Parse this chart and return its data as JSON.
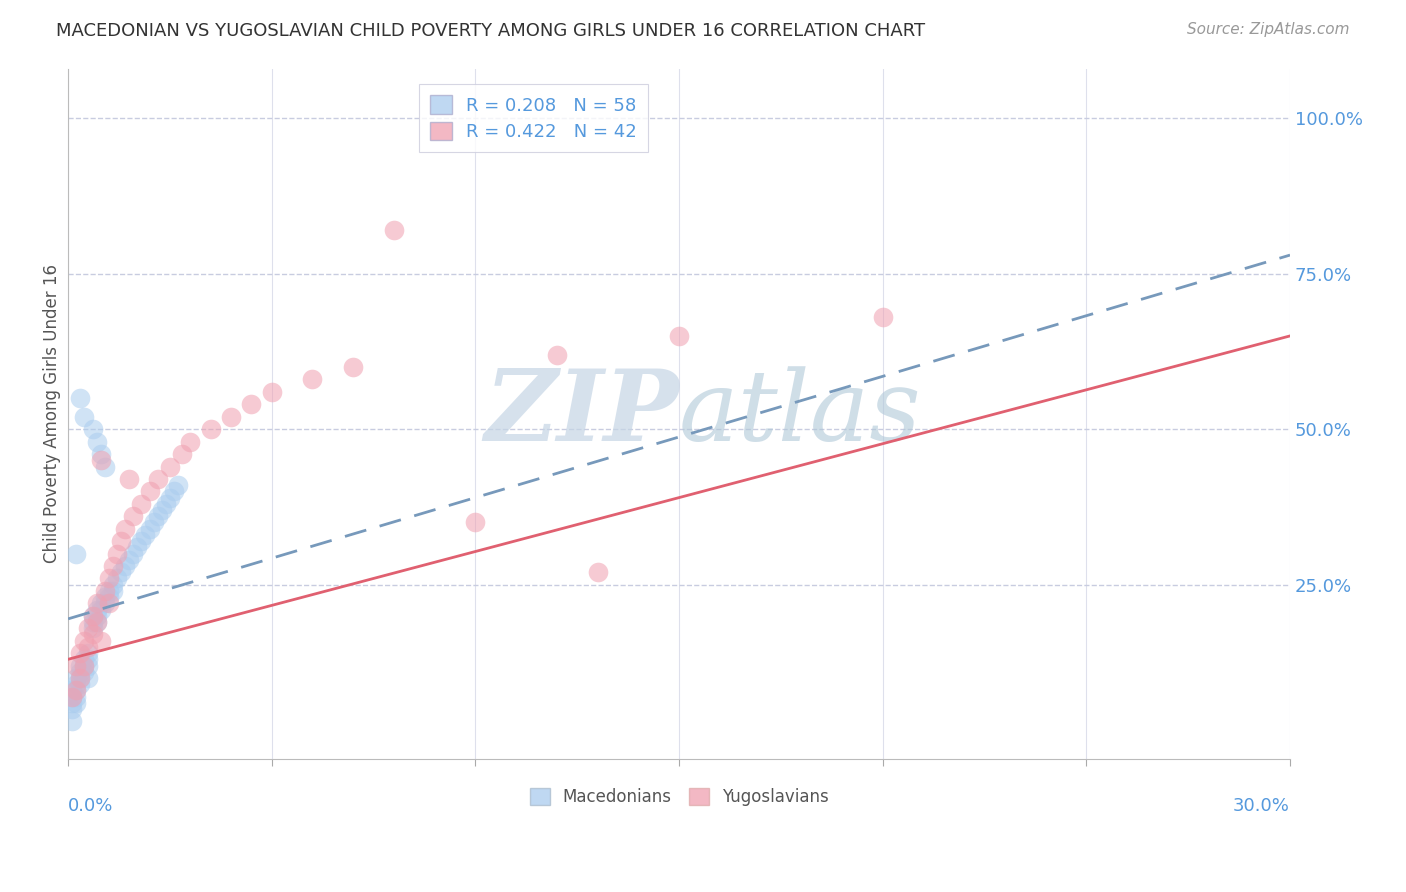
{
  "title": "MACEDONIAN VS YUGOSLAVIAN CHILD POVERTY AMONG GIRLS UNDER 16 CORRELATION CHART",
  "source": "Source: ZipAtlas.com",
  "ylabel": "Child Poverty Among Girls Under 16",
  "ytick_labels": [
    "100.0%",
    "75.0%",
    "50.0%",
    "25.0%"
  ],
  "ytick_values": [
    1.0,
    0.75,
    0.5,
    0.25
  ],
  "xmin": 0.0,
  "xmax": 0.3,
  "ymin": -0.03,
  "ymax": 1.08,
  "mac_R": 0.208,
  "mac_N": 58,
  "yug_R": 0.422,
  "yug_N": 42,
  "mac_color": "#aaccee",
  "yug_color": "#f0a0b0",
  "mac_line_color": "#7799bb",
  "yug_line_color": "#e06070",
  "grid_color": "#c8cce0",
  "axis_label_color": "#5599dd",
  "watermark_color": "#ccd8e8",
  "mac_x": [
    0.001,
    0.001,
    0.001,
    0.001,
    0.002,
    0.002,
    0.002,
    0.002,
    0.002,
    0.003,
    0.003,
    0.003,
    0.003,
    0.004,
    0.004,
    0.004,
    0.005,
    0.005,
    0.005,
    0.005,
    0.006,
    0.006,
    0.006,
    0.007,
    0.007,
    0.007,
    0.008,
    0.008,
    0.009,
    0.009,
    0.01,
    0.01,
    0.011,
    0.011,
    0.012,
    0.013,
    0.014,
    0.015,
    0.016,
    0.017,
    0.018,
    0.019,
    0.02,
    0.021,
    0.022,
    0.023,
    0.024,
    0.025,
    0.026,
    0.027,
    0.003,
    0.004,
    0.006,
    0.007,
    0.008,
    0.009,
    0.001,
    0.002
  ],
  "mac_y": [
    0.08,
    0.07,
    0.06,
    0.05,
    0.1,
    0.09,
    0.08,
    0.07,
    0.06,
    0.12,
    0.11,
    0.1,
    0.09,
    0.13,
    0.12,
    0.11,
    0.14,
    0.13,
    0.12,
    0.1,
    0.2,
    0.19,
    0.18,
    0.21,
    0.2,
    0.19,
    0.22,
    0.21,
    0.23,
    0.22,
    0.24,
    0.23,
    0.25,
    0.24,
    0.26,
    0.27,
    0.28,
    0.29,
    0.3,
    0.31,
    0.32,
    0.33,
    0.34,
    0.35,
    0.36,
    0.37,
    0.38,
    0.39,
    0.4,
    0.41,
    0.55,
    0.52,
    0.5,
    0.48,
    0.46,
    0.44,
    0.03,
    0.3
  ],
  "yug_x": [
    0.001,
    0.002,
    0.002,
    0.003,
    0.003,
    0.004,
    0.004,
    0.005,
    0.005,
    0.006,
    0.006,
    0.007,
    0.007,
    0.008,
    0.008,
    0.009,
    0.01,
    0.01,
    0.011,
    0.012,
    0.013,
    0.014,
    0.015,
    0.016,
    0.018,
    0.02,
    0.022,
    0.025,
    0.028,
    0.03,
    0.035,
    0.04,
    0.045,
    0.05,
    0.06,
    0.07,
    0.08,
    0.1,
    0.12,
    0.15,
    0.2,
    0.13
  ],
  "yug_y": [
    0.07,
    0.12,
    0.08,
    0.14,
    0.1,
    0.16,
    0.12,
    0.18,
    0.15,
    0.2,
    0.17,
    0.22,
    0.19,
    0.45,
    0.16,
    0.24,
    0.26,
    0.22,
    0.28,
    0.3,
    0.32,
    0.34,
    0.42,
    0.36,
    0.38,
    0.4,
    0.42,
    0.44,
    0.46,
    0.48,
    0.5,
    0.52,
    0.54,
    0.56,
    0.58,
    0.6,
    0.82,
    0.35,
    0.62,
    0.65,
    0.68,
    0.27
  ],
  "mac_line_x0": 0.0,
  "mac_line_y0": 0.195,
  "mac_line_x1": 0.3,
  "mac_line_y1": 0.78,
  "yug_line_x0": 0.0,
  "yug_line_y0": 0.13,
  "yug_line_x1": 0.3,
  "yug_line_y1": 0.65
}
